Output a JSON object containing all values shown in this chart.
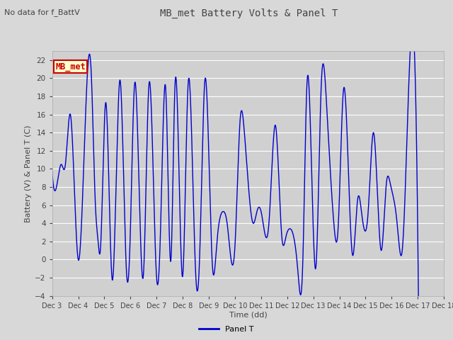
{
  "title": "MB_met Battery Volts & Panel T",
  "no_data_text": "No data for f_BattV",
  "ylabel": "Battery (V) & Panel T (C)",
  "xlabel": "Time (dd)",
  "legend_label": "Panel T",
  "legend_label2": "MB_met",
  "ylim": [
    -4,
    23
  ],
  "yticks": [
    -4,
    -2,
    0,
    2,
    4,
    6,
    8,
    10,
    12,
    14,
    16,
    18,
    20,
    22
  ],
  "xlim_start": 3.0,
  "xlim_end": 18.0,
  "xtick_labels": [
    "Dec 3",
    "Dec 4",
    "Dec 5",
    "Dec 6",
    "Dec 7",
    "Dec 8",
    "Dec 9",
    "Dec 10",
    "Dec 11",
    "Dec 12",
    "Dec 13",
    "Dec 14",
    "Dec 15",
    "Dec 16",
    "Dec 17",
    "Dec 18"
  ],
  "xtick_positions": [
    3,
    4,
    5,
    6,
    7,
    8,
    9,
    10,
    11,
    12,
    13,
    14,
    15,
    16,
    17,
    18
  ],
  "line_color": "#0000cc",
  "bg_color": "#d8d8d8",
  "plot_bg_color": "#d0d0d0",
  "grid_color": "#ffffff",
  "legend_box_color": "#ffffcc",
  "legend_box_edge": "#cc0000",
  "legend_text_color": "#cc0000",
  "title_color": "#444444",
  "label_color": "#444444",
  "tick_color": "#444444",
  "peaks": [
    [
      3.0,
      9.8
    ],
    [
      3.15,
      7.8
    ],
    [
      3.2,
      8.5
    ],
    [
      3.35,
      10.5
    ],
    [
      3.5,
      10.3
    ],
    [
      3.7,
      16.0
    ],
    [
      4.0,
      0.0
    ],
    [
      4.5,
      20.5
    ],
    [
      4.65,
      6.5
    ],
    [
      4.75,
      2.3
    ],
    [
      4.85,
      1.1
    ],
    [
      5.05,
      17.3
    ],
    [
      5.3,
      -2.2
    ],
    [
      5.6,
      19.8
    ],
    [
      5.85,
      -1.5
    ],
    [
      6.0,
      3.5
    ],
    [
      6.15,
      19.1
    ],
    [
      6.5,
      -1.5
    ],
    [
      6.7,
      19.0
    ],
    [
      7.0,
      -2.0
    ],
    [
      7.15,
      3.2
    ],
    [
      7.35,
      18.8
    ],
    [
      7.55,
      0.0
    ],
    [
      7.7,
      18.9
    ],
    [
      8.0,
      -1.8
    ],
    [
      8.2,
      19.0
    ],
    [
      8.5,
      -1.8
    ],
    [
      8.65,
      0.5
    ],
    [
      8.85,
      19.8
    ],
    [
      9.15,
      -1.2
    ],
    [
      9.3,
      1.6
    ],
    [
      9.55,
      5.3
    ],
    [
      9.7,
      4.0
    ],
    [
      10.0,
      1.5
    ],
    [
      10.2,
      15.5
    ],
    [
      10.35,
      14.4
    ],
    [
      10.7,
      4.0
    ],
    [
      10.85,
      5.4
    ],
    [
      11.0,
      5.3
    ],
    [
      11.3,
      4.0
    ],
    [
      11.55,
      14.8
    ],
    [
      11.8,
      2.3
    ],
    [
      11.95,
      2.5
    ],
    [
      12.1,
      3.4
    ],
    [
      12.4,
      -1.0
    ],
    [
      12.6,
      0.0
    ],
    [
      12.75,
      19.0
    ],
    [
      13.1,
      -0.8
    ],
    [
      13.3,
      19.0
    ],
    [
      13.5,
      17.5
    ],
    [
      13.8,
      3.5
    ],
    [
      13.95,
      3.5
    ],
    [
      14.15,
      18.6
    ],
    [
      14.5,
      0.5
    ],
    [
      14.7,
      6.7
    ],
    [
      14.85,
      5.1
    ],
    [
      15.1,
      5.3
    ],
    [
      15.3,
      14.0
    ],
    [
      15.6,
      1.0
    ],
    [
      15.8,
      8.5
    ],
    [
      15.95,
      8.3
    ],
    [
      16.2,
      4.2
    ],
    [
      16.4,
      0.9
    ],
    [
      16.65,
      19.0
    ],
    [
      17.0,
      2.3
    ]
  ]
}
